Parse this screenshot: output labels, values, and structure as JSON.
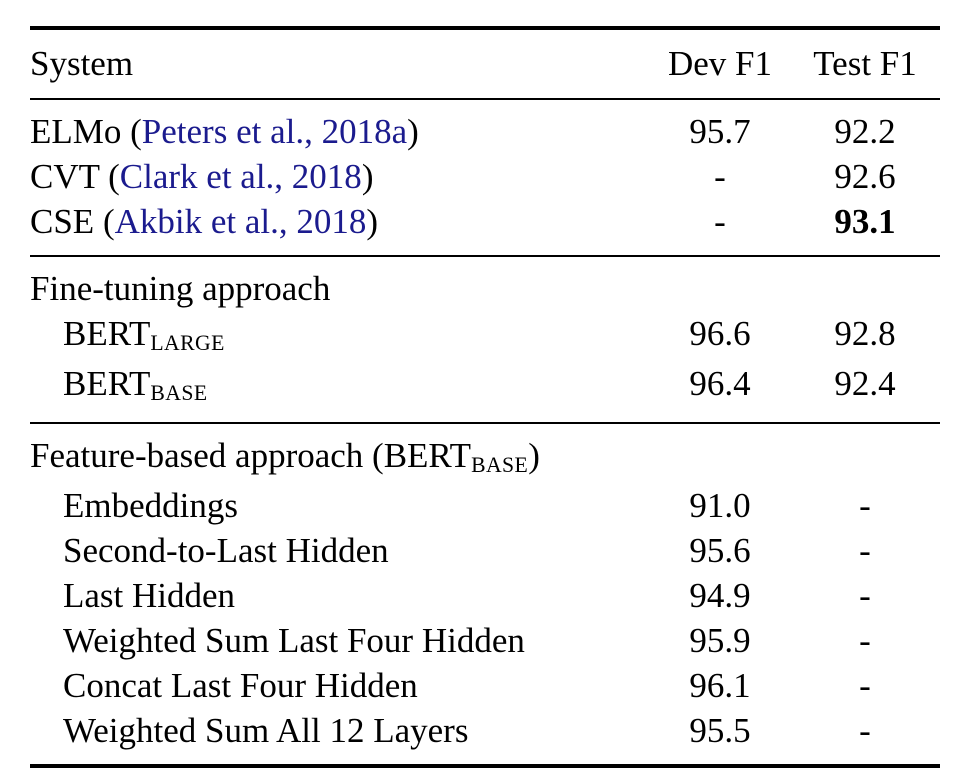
{
  "colors": {
    "text": "#000000",
    "link": "#1b1b8e",
    "rule": "#000000",
    "background": "#ffffff"
  },
  "table": {
    "columns": {
      "system": "System",
      "dev": "Dev F1",
      "test": "Test F1"
    },
    "sections": [
      {
        "rows": [
          {
            "pre": "ELMo (",
            "link": "Peters et al., 2018a",
            "post": ")",
            "dev": "95.7",
            "test": "92.2"
          },
          {
            "pre": "CVT (",
            "link": "Clark et al., 2018",
            "post": ")",
            "dev": "-",
            "test": "92.6"
          },
          {
            "pre": "CSE (",
            "link": "Akbik et al., 2018",
            "post": ")",
            "dev": "-",
            "test": "93.1"
          }
        ]
      },
      {
        "label": "Fine-tuning approach",
        "rows": [
          {
            "base": "BERT",
            "sub": "LARGE",
            "dev": "96.6",
            "test": "92.8"
          },
          {
            "base": "BERT",
            "sub": "BASE",
            "dev": "96.4",
            "test": "92.4"
          }
        ]
      },
      {
        "label_pre": "Feature-based approach (BERT",
        "label_sub": "BASE",
        "label_post": ")",
        "rows": [
          {
            "name": "Embeddings",
            "dev": "91.0",
            "test": "-"
          },
          {
            "name": "Second-to-Last Hidden",
            "dev": "95.6",
            "test": "-"
          },
          {
            "name": "Last Hidden",
            "dev": "94.9",
            "test": "-"
          },
          {
            "name": "Weighted Sum Last Four Hidden",
            "dev": "95.9",
            "test": "-"
          },
          {
            "name": "Concat Last Four Hidden",
            "dev": "96.1",
            "test": "-"
          },
          {
            "name": "Weighted Sum All 12 Layers",
            "dev": "95.5",
            "test": "-"
          }
        ]
      }
    ]
  }
}
